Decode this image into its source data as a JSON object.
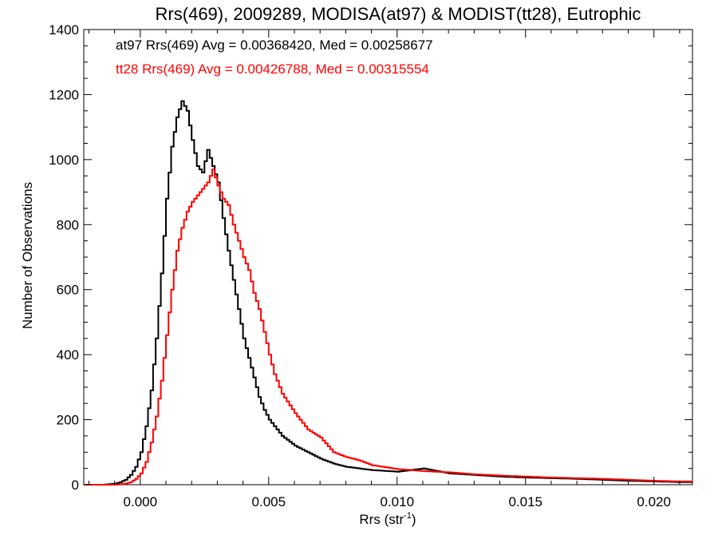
{
  "chart_data": {
    "type": "line",
    "title": "Rrs(469), 2009289, MODISA(at97) & MODIST(tt28), Eutrophic",
    "xlabel": "Rrs (str",
    "xlabel_sup": "-1",
    "xlabel_close": ")",
    "ylabel": "Number of Observations",
    "xlim": [
      -0.0022,
      0.0215
    ],
    "ylim": [
      0,
      1400
    ],
    "x_ticks": [
      "0.000",
      "0.005",
      "0.010",
      "0.015",
      "0.020"
    ],
    "x_tick_values": [
      0.0,
      0.005,
      0.01,
      0.015,
      0.02
    ],
    "y_ticks": [
      "0",
      "200",
      "400",
      "600",
      "800",
      "1000",
      "1200",
      "1400"
    ],
    "y_tick_values": [
      0,
      200,
      400,
      600,
      800,
      1000,
      1200,
      1400
    ],
    "bin_width": 0.0001,
    "stepped": true,
    "series": [
      {
        "name": "at97",
        "color": "#000000",
        "annotation": "at97 Rrs(469) Avg = 0.00368420, Med = 0.00258677",
        "points": [
          [
            -0.0022,
            0
          ],
          [
            -0.0015,
            0
          ],
          [
            -0.001,
            3
          ],
          [
            -0.0008,
            8
          ],
          [
            -0.0006,
            15
          ],
          [
            -0.0004,
            30
          ],
          [
            -0.0002,
            55
          ],
          [
            0.0,
            100
          ],
          [
            0.0002,
            180
          ],
          [
            0.0004,
            290
          ],
          [
            0.0006,
            450
          ],
          [
            0.0008,
            650
          ],
          [
            0.001,
            880
          ],
          [
            0.0012,
            1040
          ],
          [
            0.0014,
            1130
          ],
          [
            0.0016,
            1180
          ],
          [
            0.0018,
            1150
          ],
          [
            0.002,
            1060
          ],
          [
            0.0022,
            980
          ],
          [
            0.0024,
            960
          ],
          [
            0.0026,
            1030
          ],
          [
            0.0028,
            980
          ],
          [
            0.003,
            930
          ],
          [
            0.0032,
            820
          ],
          [
            0.0034,
            720
          ],
          [
            0.0036,
            630
          ],
          [
            0.0038,
            540
          ],
          [
            0.004,
            450
          ],
          [
            0.0042,
            390
          ],
          [
            0.0044,
            330
          ],
          [
            0.0046,
            270
          ],
          [
            0.0048,
            230
          ],
          [
            0.005,
            200
          ],
          [
            0.0052,
            180
          ],
          [
            0.0055,
            150
          ],
          [
            0.006,
            120
          ],
          [
            0.0065,
            100
          ],
          [
            0.007,
            80
          ],
          [
            0.0075,
            65
          ],
          [
            0.008,
            55
          ],
          [
            0.009,
            45
          ],
          [
            0.01,
            40
          ],
          [
            0.011,
            50
          ],
          [
            0.012,
            35
          ],
          [
            0.013,
            30
          ],
          [
            0.014,
            25
          ],
          [
            0.015,
            22
          ],
          [
            0.016,
            20
          ],
          [
            0.017,
            18
          ],
          [
            0.018,
            15
          ],
          [
            0.019,
            12
          ],
          [
            0.02,
            10
          ],
          [
            0.021,
            8
          ],
          [
            0.0215,
            8
          ]
        ]
      },
      {
        "name": "tt28",
        "color": "#ff0000",
        "annotation": "tt28 Rrs(469) Avg = 0.00426788, Med = 0.00315554",
        "points": [
          [
            -0.0022,
            0
          ],
          [
            -0.001,
            0
          ],
          [
            -0.0006,
            3
          ],
          [
            -0.0004,
            8
          ],
          [
            -0.0002,
            18
          ],
          [
            0.0,
            35
          ],
          [
            0.0002,
            70
          ],
          [
            0.0004,
            130
          ],
          [
            0.0006,
            210
          ],
          [
            0.0008,
            320
          ],
          [
            0.001,
            460
          ],
          [
            0.0012,
            600
          ],
          [
            0.0014,
            720
          ],
          [
            0.0016,
            790
          ],
          [
            0.0018,
            840
          ],
          [
            0.002,
            870
          ],
          [
            0.0022,
            890
          ],
          [
            0.0024,
            910
          ],
          [
            0.0026,
            930
          ],
          [
            0.0028,
            970
          ],
          [
            0.003,
            920
          ],
          [
            0.0032,
            880
          ],
          [
            0.0034,
            860
          ],
          [
            0.0036,
            800
          ],
          [
            0.0038,
            750
          ],
          [
            0.004,
            700
          ],
          [
            0.0042,
            660
          ],
          [
            0.0044,
            590
          ],
          [
            0.0046,
            540
          ],
          [
            0.0048,
            470
          ],
          [
            0.005,
            400
          ],
          [
            0.0052,
            340
          ],
          [
            0.0055,
            280
          ],
          [
            0.006,
            220
          ],
          [
            0.0065,
            170
          ],
          [
            0.007,
            145
          ],
          [
            0.0075,
            100
          ],
          [
            0.008,
            85
          ],
          [
            0.0085,
            75
          ],
          [
            0.009,
            60
          ],
          [
            0.01,
            48
          ],
          [
            0.011,
            42
          ],
          [
            0.012,
            38
          ],
          [
            0.013,
            32
          ],
          [
            0.014,
            28
          ],
          [
            0.015,
            25
          ],
          [
            0.016,
            22
          ],
          [
            0.017,
            20
          ],
          [
            0.018,
            18
          ],
          [
            0.019,
            15
          ],
          [
            0.02,
            12
          ],
          [
            0.021,
            10
          ],
          [
            0.0215,
            10
          ]
        ]
      }
    ]
  }
}
